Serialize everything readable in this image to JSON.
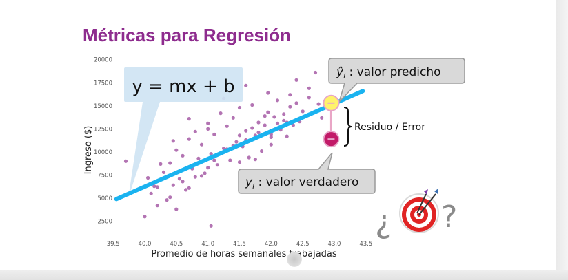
{
  "slide": {
    "title": "Métricas para Regresión",
    "equation": "y = mx + b",
    "callout_predicho": {
      "symbol": "ŷ",
      "sub": "i",
      "text": " : valor predicho"
    },
    "callout_verdadero": {
      "symbol": "y",
      "sub": "i",
      "text": " : valor verdadero"
    },
    "residuo_label": "Residuo / Error",
    "question_icon": "question-target-icon",
    "colors": {
      "title": "#8e2c8e",
      "points": "#8b2a8b",
      "line": "#1ab3f0",
      "bubble": "#cfe4f3",
      "callout": "#d9d9d9"
    }
  },
  "chart_data": {
    "type": "scatter",
    "xlabel": "Promedio de horas semanales trabajadas",
    "ylabel": "Ingreso ($)",
    "xlim": [
      39.4,
      43.6
    ],
    "ylim": [
      1200,
      20800
    ],
    "x_ticks": [
      "39.5",
      "40.0",
      "40.5",
      "41.0",
      "41.5",
      "42.0",
      "42.5",
      "43.0",
      "43.5"
    ],
    "y_ticks": [
      "2500",
      "5000",
      "7500",
      "10000",
      "12500",
      "15000",
      "17500",
      "20000"
    ],
    "regression_line": {
      "x": [
        39.55,
        43.45
      ],
      "y": [
        4900,
        16600
      ]
    },
    "predicted_point": {
      "x": 42.95,
      "y": 15300
    },
    "true_point": {
      "x": 42.95,
      "y": 11400
    },
    "series": [
      {
        "x": [
          39.7,
          40.0,
          40.1,
          40.2,
          40.3,
          40.35,
          40.4,
          40.45,
          40.5,
          40.55,
          40.6,
          40.65,
          40.7,
          40.75,
          40.8,
          40.85,
          40.9,
          40.95,
          41.0,
          41.05,
          41.1,
          41.15,
          41.2,
          41.25,
          41.3,
          41.35,
          41.4,
          41.45,
          41.5,
          41.55,
          41.6,
          41.65,
          41.7,
          41.75,
          41.8,
          41.85,
          41.9,
          41.95,
          42.0,
          42.05,
          42.1,
          42.15,
          42.2,
          42.25,
          42.3,
          42.35,
          42.4,
          42.5,
          42.6,
          42.7,
          42.8,
          40.2,
          40.4,
          40.6,
          40.8,
          41.0,
          41.2,
          41.4,
          41.6,
          41.8,
          42.0,
          42.2,
          42.4,
          42.6,
          40.5,
          40.7,
          40.9,
          41.1,
          41.3,
          41.5,
          41.7,
          41.9,
          42.1,
          42.3,
          41.05,
          40.25,
          41.95,
          42.45,
          42.75,
          40.05,
          40.15,
          41.0,
          41.5,
          42.0,
          40.7,
          41.25,
          41.75,
          40.45,
          41.6,
          42.25
        ],
        "y": [
          9000,
          3000,
          5500,
          6200,
          7800,
          4800,
          8800,
          6400,
          10200,
          7100,
          9600,
          5900,
          11400,
          8200,
          12200,
          9300,
          10800,
          7700,
          13100,
          9800,
          11900,
          8600,
          14200,
          10400,
          12800,
          9100,
          13700,
          11100,
          14800,
          10600,
          12300,
          9400,
          15100,
          11800,
          13200,
          10100,
          12900,
          14300,
          11600,
          13800,
          15600,
          12400,
          14100,
          13200,
          16200,
          12900,
          15300,
          14400,
          16900,
          18600,
          13700,
          4200,
          5100,
          6800,
          7300,
          8300,
          9900,
          10700,
          11300,
          12100,
          11900,
          13400,
          17800,
          15900,
          3800,
          6100,
          7400,
          9100,
          10300,
          11800,
          12600,
          13900,
          13100,
          14900,
          2000,
          8700,
          16400,
          13300,
          15200,
          7200,
          6300,
          12500,
          8900,
          10800,
          13600,
          15800,
          9200,
          11200,
          17200,
          11700
        ]
      }
    ]
  }
}
